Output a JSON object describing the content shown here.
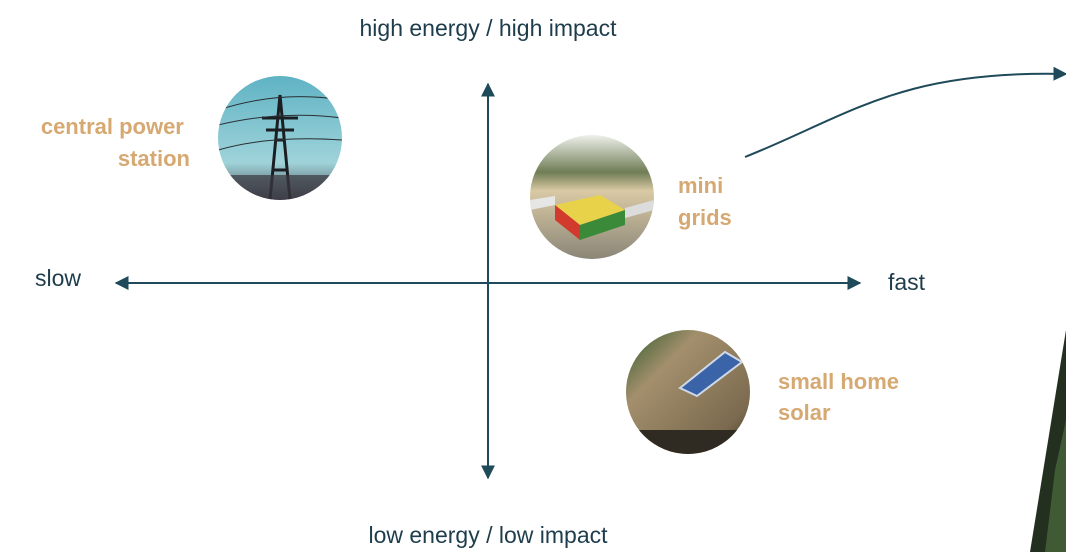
{
  "axes": {
    "top": "high energy / high impact",
    "bottom": "low energy / low impact",
    "left": "slow",
    "right": "fast"
  },
  "items": [
    {
      "label": [
        "central power",
        "station"
      ]
    },
    {
      "label": [
        "mini",
        "grids"
      ]
    },
    {
      "label": [
        "small home",
        "solar"
      ]
    }
  ]
}
